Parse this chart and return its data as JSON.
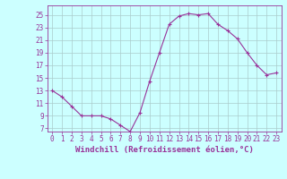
{
  "x": [
    0,
    1,
    2,
    3,
    4,
    5,
    6,
    7,
    8,
    9,
    10,
    11,
    12,
    13,
    14,
    15,
    16,
    17,
    18,
    19,
    20,
    21,
    22,
    23
  ],
  "y": [
    13,
    12,
    10.5,
    9,
    9,
    9,
    8.5,
    7.5,
    6.5,
    9.5,
    14.5,
    19,
    23.5,
    24.8,
    25.2,
    25.0,
    25.2,
    23.5,
    22.5,
    21.2,
    19,
    17,
    15.5,
    15.8
  ],
  "line_color": "#993399",
  "marker": "+",
  "bg_color": "#ccffff",
  "grid_color": "#aacccc",
  "xlabel": "Windchill (Refroidissement éolien,°C)",
  "ylabel_ticks": [
    7,
    9,
    11,
    13,
    15,
    17,
    19,
    21,
    23,
    25
  ],
  "xlim": [
    -0.5,
    23.5
  ],
  "ylim": [
    6.5,
    26.5
  ],
  "xlabel_color": "#993399",
  "tick_color": "#993399",
  "axis_color": "#993399",
  "tick_fontsize": 5.5,
  "xlabel_fontsize": 6.5
}
